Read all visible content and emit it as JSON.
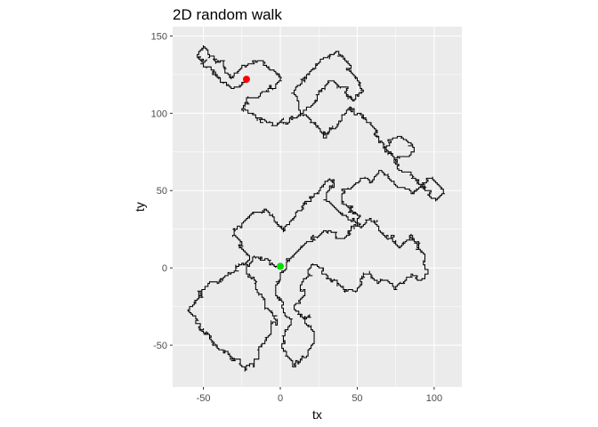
{
  "chart_data": {
    "type": "line",
    "title": "2D random walk",
    "xlabel": "tx",
    "ylabel": "ty",
    "xlim": [
      -70,
      118
    ],
    "ylim": [
      -77,
      156
    ],
    "x_ticks": [
      -50,
      0,
      50,
      100
    ],
    "x_tick_labels": [
      "-50",
      "0",
      "50",
      "100"
    ],
    "y_ticks": [
      -50,
      0,
      50,
      100,
      150
    ],
    "y_tick_labels": [
      "-50",
      "0",
      "50",
      "100",
      "150"
    ],
    "grid": true,
    "panel_background": "#ebebeb",
    "grid_color": "#ffffff",
    "path_color": "#000000",
    "path_summary": "random walk path of about 40000 unit lattice steps from the start point to the end point; only a waypoint skeleton is recorded",
    "start_point": {
      "x": 0,
      "y": 1,
      "color": "#00dd00"
    },
    "end_point": {
      "x": -22,
      "y": 122,
      "color": "#ff0000"
    },
    "path_waypoints": [
      [
        0,
        1
      ],
      [
        -8,
        6
      ],
      [
        -20,
        2
      ],
      [
        -32,
        -4
      ],
      [
        -40,
        -10
      ],
      [
        -50,
        -14
      ],
      [
        -55,
        -22
      ],
      [
        -60,
        -28
      ],
      [
        -52,
        -36
      ],
      [
        -46,
        -46
      ],
      [
        -40,
        -52
      ],
      [
        -30,
        -60
      ],
      [
        -20,
        -62
      ],
      [
        -14,
        -58
      ],
      [
        -10,
        -48
      ],
      [
        -6,
        -42
      ],
      [
        -4,
        -32
      ],
      [
        -10,
        -24
      ],
      [
        -16,
        -14
      ],
      [
        -22,
        -4
      ],
      [
        -20,
        6
      ],
      [
        -26,
        14
      ],
      [
        -30,
        22
      ],
      [
        -24,
        30
      ],
      [
        -18,
        36
      ],
      [
        -10,
        38
      ],
      [
        -4,
        32
      ],
      [
        2,
        24
      ],
      [
        8,
        32
      ],
      [
        14,
        40
      ],
      [
        20,
        46
      ],
      [
        26,
        52
      ],
      [
        32,
        58
      ],
      [
        30,
        48
      ],
      [
        34,
        40
      ],
      [
        40,
        34
      ],
      [
        46,
        30
      ],
      [
        52,
        26
      ],
      [
        58,
        32
      ],
      [
        64,
        26
      ],
      [
        70,
        18
      ],
      [
        76,
        14
      ],
      [
        84,
        20
      ],
      [
        90,
        14
      ],
      [
        94,
        8
      ],
      [
        96,
        -2
      ],
      [
        92,
        -8
      ],
      [
        86,
        -4
      ],
      [
        80,
        -10
      ],
      [
        74,
        -14
      ],
      [
        70,
        -8
      ],
      [
        64,
        -10
      ],
      [
        58,
        -4
      ],
      [
        52,
        -8
      ],
      [
        50,
        -14
      ],
      [
        42,
        -16
      ],
      [
        36,
        -8
      ],
      [
        30,
        -4
      ],
      [
        24,
        2
      ],
      [
        18,
        -2
      ],
      [
        14,
        -10
      ],
      [
        10,
        -24
      ],
      [
        16,
        -34
      ],
      [
        22,
        -42
      ],
      [
        18,
        -54
      ],
      [
        12,
        -62
      ],
      [
        8,
        -64
      ],
      [
        4,
        -56
      ],
      [
        2,
        -46
      ],
      [
        6,
        -38
      ],
      [
        2,
        -28
      ],
      [
        -2,
        -18
      ],
      [
        0,
        -8
      ],
      [
        4,
        0
      ],
      [
        8,
        8
      ],
      [
        14,
        14
      ],
      [
        20,
        20
      ],
      [
        28,
        24
      ],
      [
        36,
        20
      ],
      [
        44,
        22
      ],
      [
        50,
        30
      ],
      [
        46,
        38
      ],
      [
        40,
        44
      ],
      [
        44,
        52
      ],
      [
        52,
        58
      ],
      [
        58,
        56
      ],
      [
        64,
        62
      ],
      [
        70,
        58
      ],
      [
        76,
        52
      ],
      [
        84,
        50
      ],
      [
        92,
        54
      ],
      [
        100,
        56
      ],
      [
        106,
        50
      ],
      [
        102,
        44
      ],
      [
        96,
        48
      ],
      [
        88,
        58
      ],
      [
        80,
        62
      ],
      [
        74,
        68
      ],
      [
        70,
        76
      ],
      [
        74,
        84
      ],
      [
        82,
        82
      ],
      [
        86,
        78
      ],
      [
        84,
        72
      ],
      [
        76,
        72
      ],
      [
        68,
        78
      ],
      [
        62,
        86
      ],
      [
        58,
        94
      ],
      [
        52,
        100
      ],
      [
        46,
        104
      ],
      [
        40,
        98
      ],
      [
        36,
        90
      ],
      [
        30,
        86
      ],
      [
        24,
        92
      ],
      [
        18,
        98
      ],
      [
        12,
        104
      ],
      [
        10,
        112
      ],
      [
        14,
        120
      ],
      [
        20,
        128
      ],
      [
        26,
        134
      ],
      [
        32,
        138
      ],
      [
        40,
        136
      ],
      [
        46,
        130
      ],
      [
        50,
        122
      ],
      [
        54,
        114
      ],
      [
        48,
        108
      ],
      [
        42,
        114
      ],
      [
        36,
        120
      ],
      [
        30,
        118
      ],
      [
        24,
        112
      ],
      [
        20,
        104
      ],
      [
        12,
        98
      ],
      [
        6,
        94
      ],
      [
        -2,
        92
      ],
      [
        -10,
        96
      ],
      [
        -18,
        100
      ],
      [
        -24,
        104
      ],
      [
        -20,
        110
      ],
      [
        -12,
        114
      ],
      [
        -6,
        118
      ],
      [
        0,
        122
      ],
      [
        -4,
        128
      ],
      [
        -10,
        132
      ],
      [
        -16,
        134
      ],
      [
        -22,
        130
      ],
      [
        -28,
        126
      ],
      [
        -32,
        122
      ],
      [
        -36,
        128
      ],
      [
        -40,
        134
      ],
      [
        -46,
        138
      ],
      [
        -50,
        144
      ],
      [
        -54,
        138
      ],
      [
        -50,
        132
      ],
      [
        -44,
        126
      ],
      [
        -38,
        120
      ],
      [
        -32,
        116
      ],
      [
        -26,
        118
      ],
      [
        -22,
        122
      ]
    ]
  }
}
